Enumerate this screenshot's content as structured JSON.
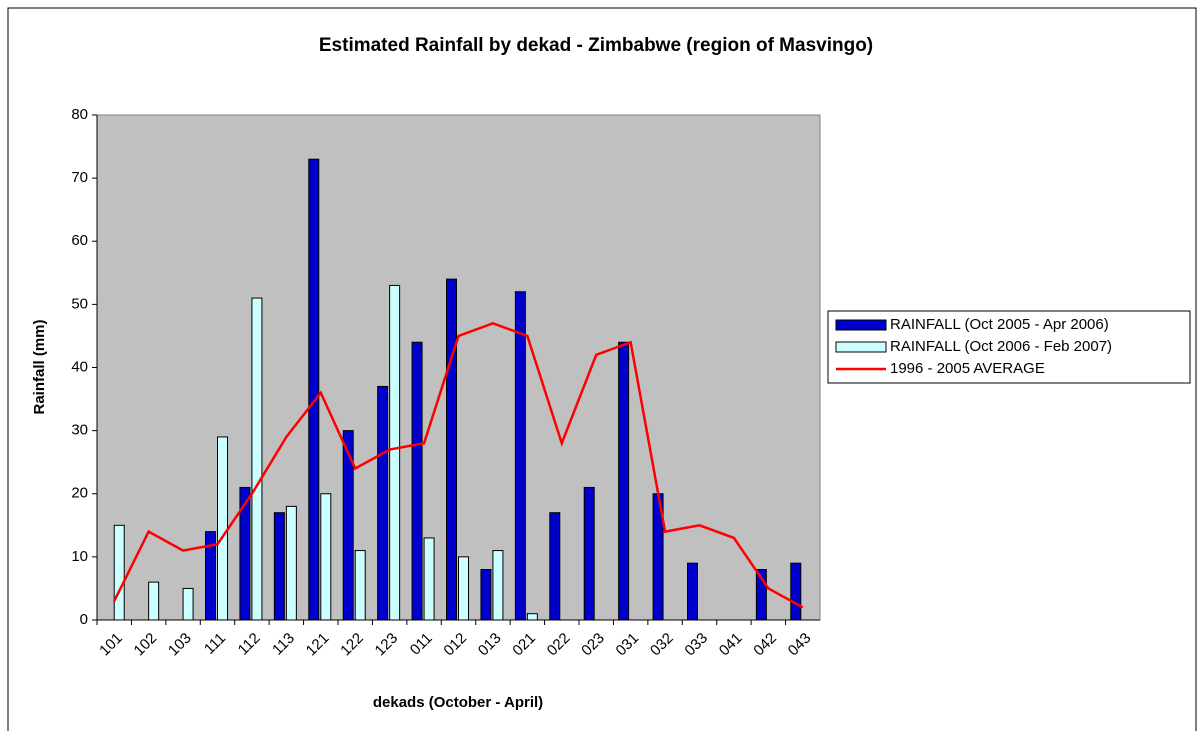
{
  "chart_data": {
    "type": "bar",
    "title": "Estimated Rainfall by dekad - Zimbabwe (region of Masvingo)",
    "x_label": "dekads (October - April)",
    "y_label": "Rainfall (mm)",
    "categories": [
      "101",
      "102",
      "103",
      "111",
      "112",
      "113",
      "121",
      "122",
      "123",
      "011",
      "012",
      "013",
      "021",
      "022",
      "023",
      "031",
      "032",
      "033",
      "041",
      "042",
      "043"
    ],
    "series": [
      {
        "name": "RAINFALL (Oct 2005 - Apr 2006)",
        "type": "bar",
        "color": "#0000cc",
        "values": [
          null,
          null,
          null,
          14,
          21,
          17,
          73,
          30,
          37,
          44,
          54,
          8,
          52,
          17,
          21,
          44,
          20,
          9,
          null,
          8,
          9
        ]
      },
      {
        "name": "RAINFALL (Oct 2006 - Feb 2007)",
        "type": "bar",
        "color": "#ccffff",
        "values": [
          15,
          6,
          5,
          29,
          51,
          18,
          20,
          11,
          53,
          13,
          10,
          11,
          1,
          null,
          null,
          null,
          null,
          null,
          null,
          null,
          null
        ]
      },
      {
        "name": "1996 - 2005 AVERAGE",
        "type": "line",
        "color": "#ff0000",
        "values": [
          3,
          14,
          11,
          12,
          20,
          29,
          36,
          24,
          27,
          28,
          45,
          47,
          45,
          28,
          42,
          44,
          14,
          15,
          13,
          5,
          2
        ]
      }
    ],
    "ylim": [
      0,
      80
    ],
    "yticks": [
      0,
      10,
      20,
      30,
      40,
      50,
      60,
      70,
      80
    ],
    "plot_background": "#c0c0c0",
    "legend": "right"
  }
}
